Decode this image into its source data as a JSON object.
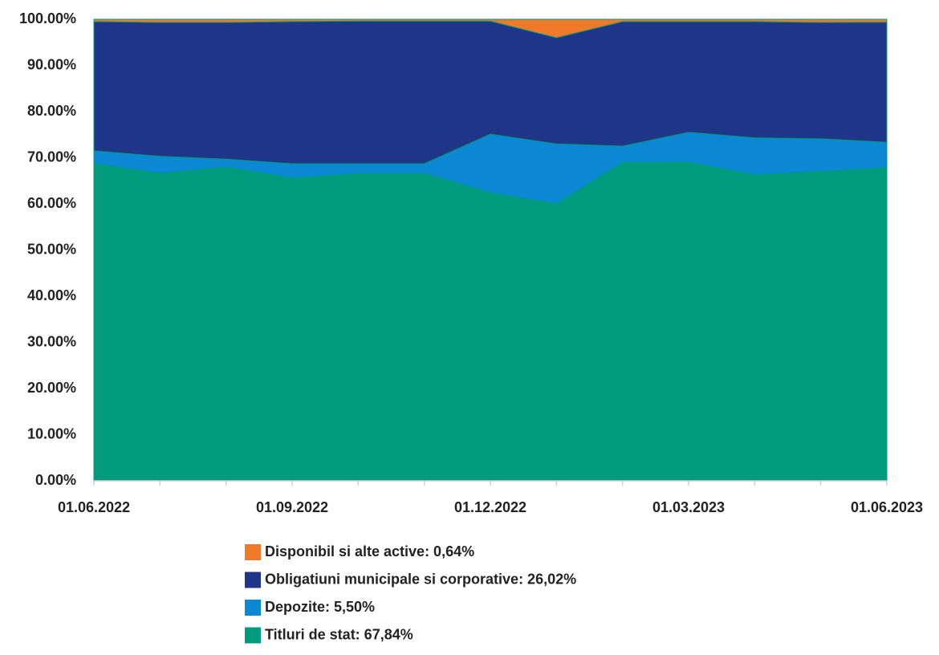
{
  "chart_data": {
    "type": "stacked_area",
    "categories": [
      "01.06.2022",
      null,
      null,
      "01.09.2022",
      null,
      null,
      "01.12.2022",
      null,
      null,
      "01.03.2023",
      null,
      null,
      "01.06.2023"
    ],
    "series": [
      {
        "name": "Disponibil si alte active: 0,64%",
        "color": "#f07a2a",
        "values": [
          0.5,
          0.7,
          0.7,
          0.5,
          0.4,
          0.4,
          0.4,
          4.0,
          0.5,
          0.5,
          0.5,
          0.7,
          0.64
        ]
      },
      {
        "name": "Obligatiuni municipale si corporative: 26,02%",
        "color": "#1f3587",
        "values": [
          28.0,
          29.0,
          29.6,
          30.8,
          30.9,
          30.9,
          24.5,
          23.0,
          27.0,
          24.0,
          25.2,
          25.2,
          26.02
        ]
      },
      {
        "name": "Depozite: 5,50%",
        "color": "#0a88d4",
        "values": [
          2.8,
          3.7,
          1.7,
          3.1,
          2.1,
          2.1,
          12.7,
          13.0,
          3.5,
          6.5,
          8.0,
          7.1,
          5.5
        ]
      },
      {
        "name": "Titluri de stat: 67,84%",
        "color": "#009b7d",
        "values": [
          68.7,
          66.6,
          68.0,
          65.6,
          66.6,
          66.6,
          62.4,
          60.0,
          69.0,
          69.0,
          66.3,
          67.0,
          67.84
        ]
      }
    ],
    "ylim": [
      0,
      100
    ],
    "yticks": [
      {
        "value": 0,
        "label": "0.00%"
      },
      {
        "value": 10,
        "label": "10.00%"
      },
      {
        "value": 20,
        "label": "20.00%"
      },
      {
        "value": 30,
        "label": "30.00%"
      },
      {
        "value": 40,
        "label": "40.00%"
      },
      {
        "value": 50,
        "label": "50.00%"
      },
      {
        "value": 60,
        "label": "60.00%"
      },
      {
        "value": 70,
        "label": "70.00%"
      },
      {
        "value": 80,
        "label": "80.00%"
      },
      {
        "value": 90,
        "label": "90.00%"
      },
      {
        "value": 100,
        "label": "100.00%"
      }
    ],
    "grid": false,
    "legend": "bottom"
  }
}
